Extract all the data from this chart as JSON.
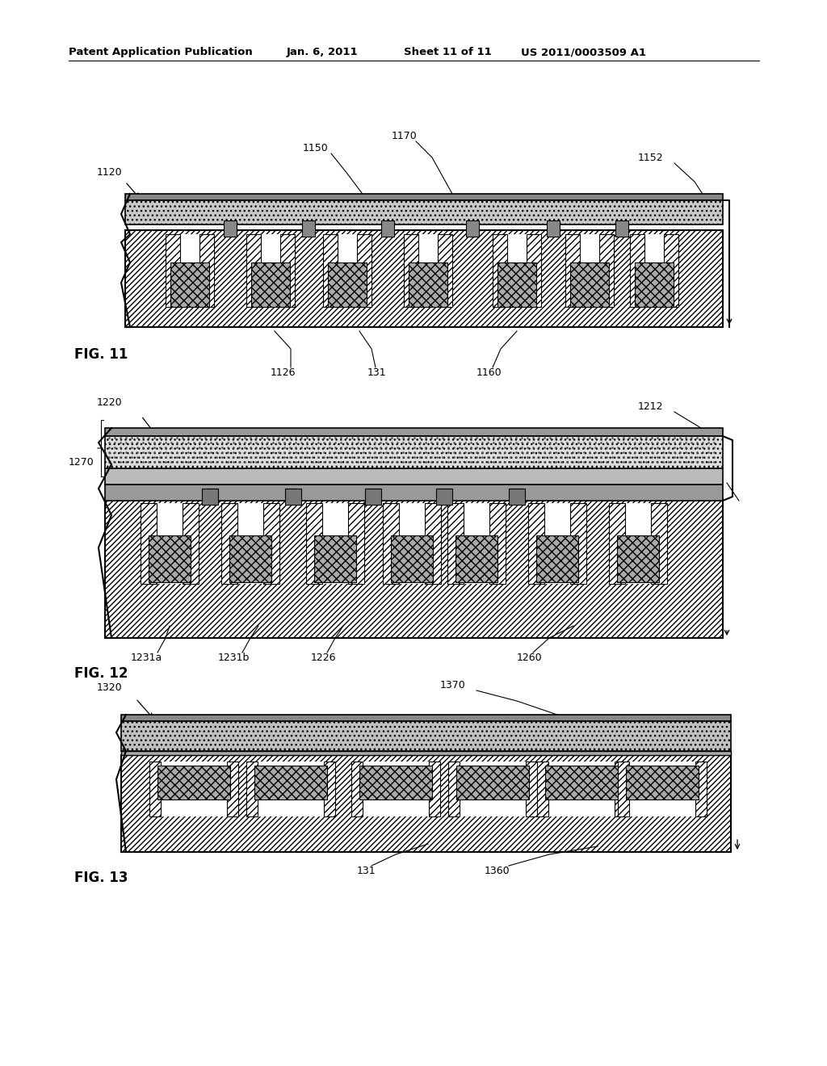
{
  "bg_color": "#ffffff",
  "header_text": "Patent Application Publication",
  "header_date": "Jan. 6, 2011",
  "header_sheet": "Sheet 11 of 11",
  "header_patent": "US 2011/0003509 A1",
  "fig11_label": "FIG. 11",
  "fig12_label": "FIG. 12",
  "fig13_label": "FIG. 13"
}
